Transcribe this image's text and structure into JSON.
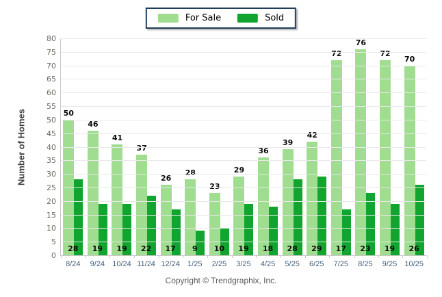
{
  "legend": {
    "for_sale_label": "For Sale",
    "sold_label": "Sold"
  },
  "y_axis": {
    "title": "Number of Homes",
    "min": 0,
    "max": 80,
    "step": 5
  },
  "colors": {
    "for_sale": "#a1dd90",
    "sold": "#11a52f"
  },
  "footer": {
    "copyright": "Copyright © Trendgraphix, Inc."
  },
  "chart_data": {
    "type": "bar",
    "title": "",
    "xlabel": "",
    "ylabel": "Number of Homes",
    "ylim": [
      0,
      80
    ],
    "ytick_step": 5,
    "grid": true,
    "legend_position": "top-center",
    "categories": [
      "8/24",
      "9/24",
      "10/24",
      "11/24",
      "12/24",
      "1/25",
      "2/25",
      "3/25",
      "4/25",
      "5/25",
      "6/25",
      "7/25",
      "8/25",
      "9/25",
      "10/25"
    ],
    "series": [
      {
        "name": "For Sale",
        "color": "#a1dd90",
        "values": [
          50,
          46,
          41,
          37,
          26,
          28,
          23,
          29,
          36,
          39,
          42,
          72,
          76,
          72,
          70
        ]
      },
      {
        "name": "Sold",
        "color": "#11a52f",
        "values": [
          28,
          19,
          19,
          22,
          17,
          9,
          10,
          19,
          18,
          28,
          29,
          17,
          23,
          19,
          26
        ]
      }
    ]
  }
}
